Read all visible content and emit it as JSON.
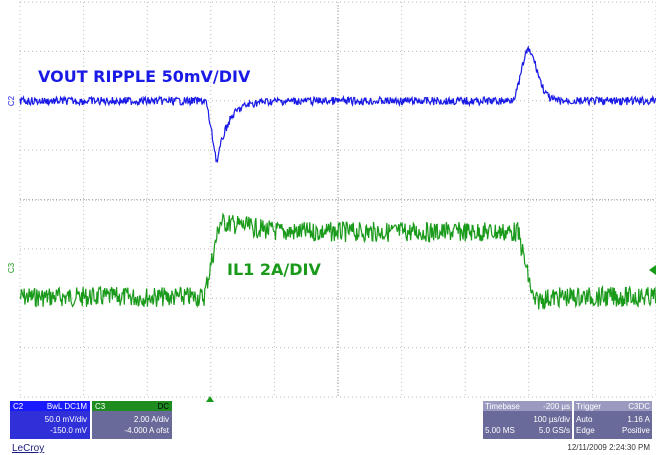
{
  "trace_labels": {
    "vout": "VOUT RIPPLE 50mV/DIV",
    "il1": "IL1 2A/DIV"
  },
  "channel_markers": {
    "c2": "C2",
    "c3": "C3"
  },
  "panels": {
    "c2": {
      "name": "C2",
      "header": "BwL DC1M",
      "lines": [
        "50.0 mV/div",
        "-150.0 mV"
      ]
    },
    "c3": {
      "name": "C3",
      "header": "DC",
      "lines": [
        "2.00 A/div",
        "-4.000 A ofst"
      ]
    },
    "timebase": {
      "title": "Timebase",
      "delay": "-200 µs",
      "lines": [
        "100 µs/div",
        "5.00 MS",
        "5.0 GS/s"
      ]
    },
    "trigger": {
      "title": "Trigger",
      "source": "C3DC",
      "lines": [
        "Auto",
        "1.16 A",
        "Edge",
        "Positive"
      ]
    }
  },
  "footer": {
    "brand": "LeCroy",
    "timestamp": "12/11/2009 2:24:30 PM"
  }
}
